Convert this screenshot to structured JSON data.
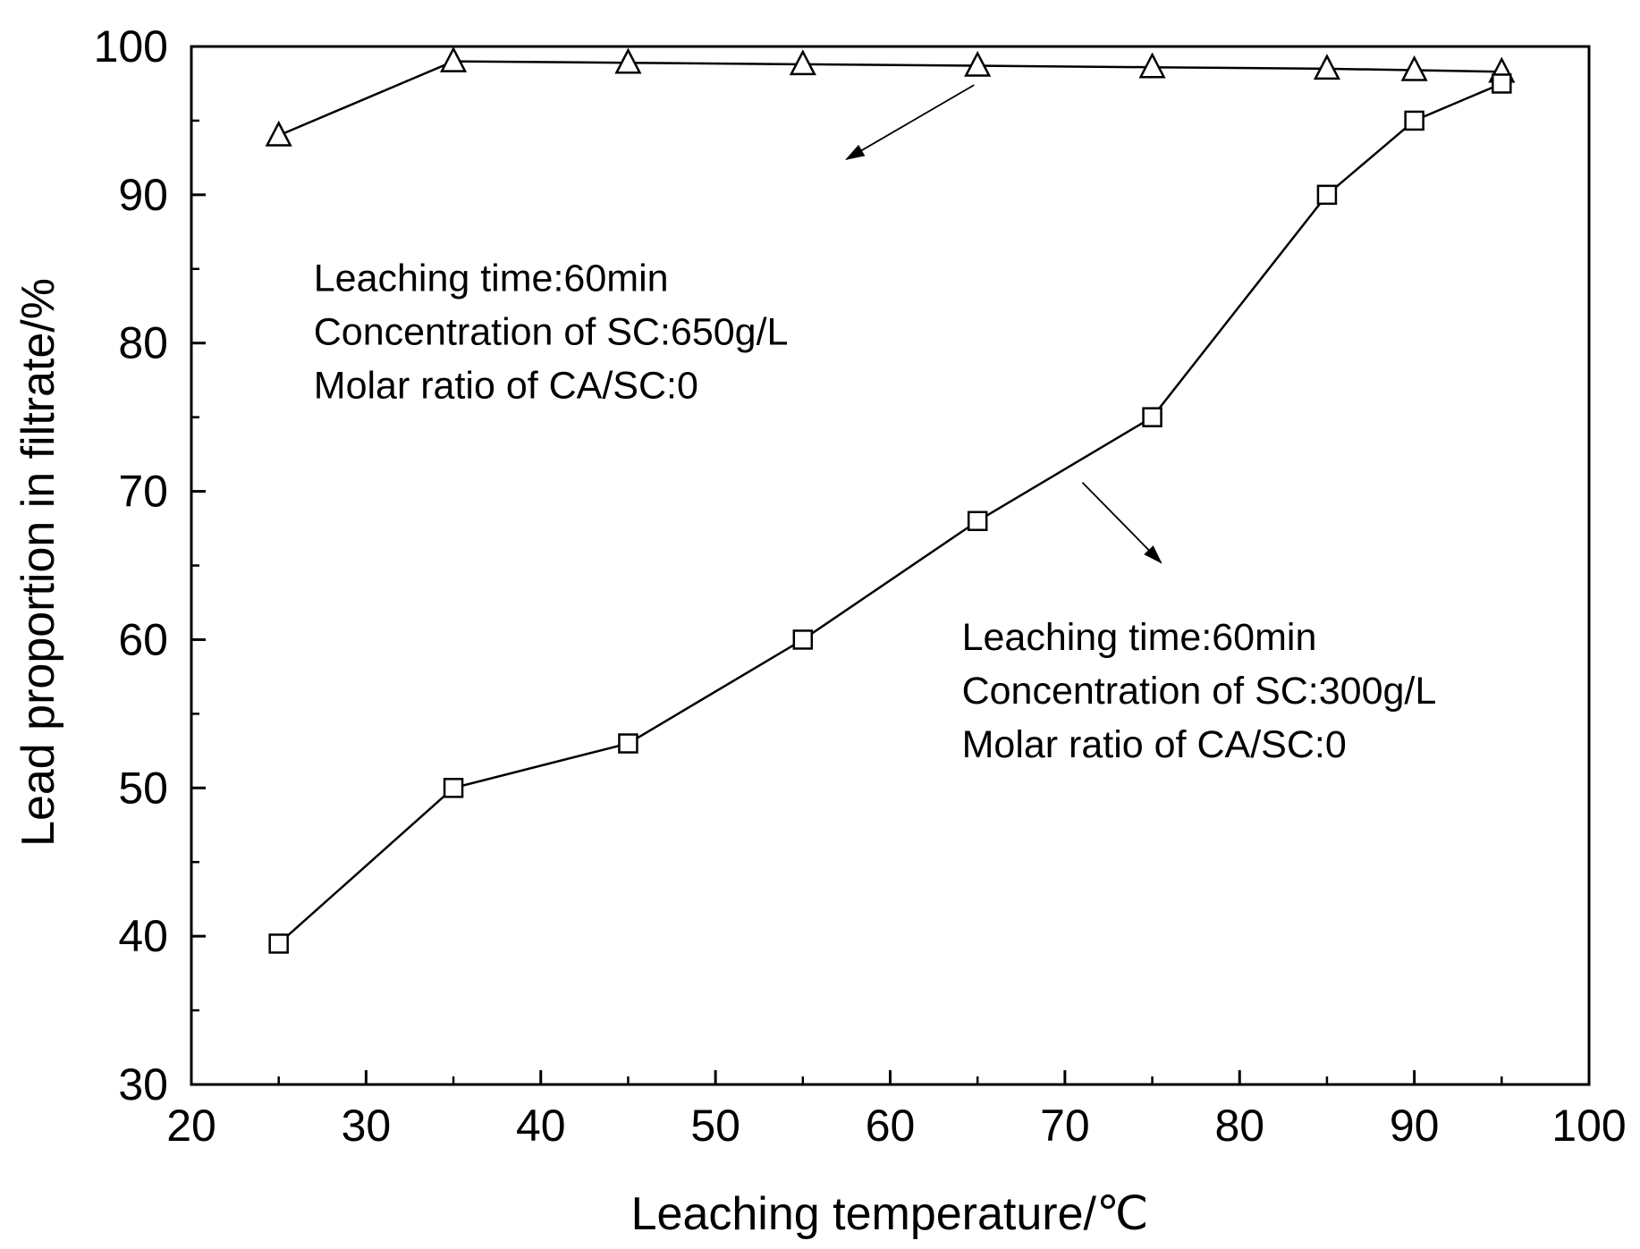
{
  "chart_data": {
    "type": "line",
    "title": "",
    "xlabel": "Leaching temperature/℃",
    "ylabel": "Lead proportion in filtrate/%",
    "xlim": [
      20,
      100
    ],
    "ylim": [
      30,
      100
    ],
    "xticks": [
      20,
      30,
      40,
      50,
      60,
      70,
      80,
      90,
      100
    ],
    "yticks": [
      30,
      40,
      50,
      60,
      70,
      80,
      90,
      100
    ],
    "grid": false,
    "series": [
      {
        "name": "Concentration of SC:650g/L",
        "marker": "triangle",
        "x": [
          25,
          35,
          45,
          55,
          65,
          75,
          85,
          90,
          95
        ],
        "y": [
          94.0,
          99.0,
          98.9,
          98.8,
          98.7,
          98.6,
          98.5,
          98.4,
          98.3
        ]
      },
      {
        "name": "Concentration of SC:300g/L",
        "marker": "square",
        "x": [
          25,
          35,
          45,
          55,
          65,
          75,
          85,
          90,
          95
        ],
        "y": [
          39.5,
          50,
          53,
          60,
          68,
          75,
          90,
          95,
          97.5
        ]
      }
    ],
    "annotations": [
      {
        "lines": [
          "Leaching time:60min",
          "Concentration of SC:650g/L",
          "Molar ratio of CA/SC:0"
        ],
        "x": 27,
        "y": 83.5,
        "arrow": {
          "from": [
            64.8,
            97.4
          ],
          "to": [
            57.5,
            92.4
          ]
        }
      },
      {
        "lines": [
          "Leaching time:60min",
          "Concentration of SC:300g/L",
          "Molar ratio of CA/SC:0"
        ],
        "x": 64.1,
        "y": 59.3,
        "arrow": {
          "from": [
            71.0,
            70.6
          ],
          "to": [
            75.5,
            65.2
          ]
        }
      }
    ]
  }
}
